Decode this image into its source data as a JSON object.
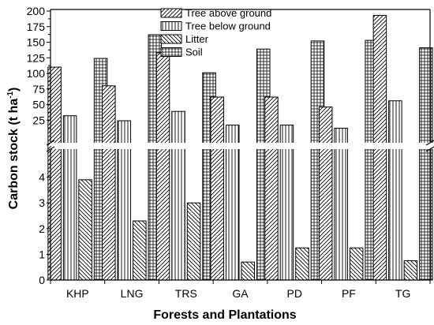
{
  "chart_data": {
    "type": "bar",
    "categories": [
      "KHP",
      "LNG",
      "TRS",
      "GA",
      "PD",
      "PF",
      "TG"
    ],
    "series": [
      {
        "name": "Tree above ground",
        "pattern": "diag-right",
        "values": [
          110,
          80,
          133,
          62,
          62,
          46,
          193
        ]
      },
      {
        "name": "Tree below ground",
        "pattern": "vertical",
        "values": [
          32,
          24,
          39,
          17,
          17,
          12,
          56
        ]
      },
      {
        "name": "Litter",
        "pattern": "diag-left",
        "values": [
          3.9,
          2.3,
          3.0,
          0.7,
          1.25,
          1.25,
          0.75
        ]
      },
      {
        "name": "Soil",
        "pattern": "grid",
        "values": [
          124,
          162,
          101,
          139,
          152,
          153,
          141
        ]
      }
    ],
    "xlabel": "Forests and Plantations",
    "ylabel": "Carbon stock (t ha",
    "ylabel_sup": "-1",
    "ylabel_close": ")",
    "y_axis_broken": true,
    "lower_segment": {
      "ylim": [
        0,
        5
      ],
      "ticks": [
        "0",
        "1",
        "2",
        "3",
        "4"
      ]
    },
    "upper_segment": {
      "ylim": [
        5,
        200
      ],
      "ticks": [
        "25",
        "50",
        "75",
        "100",
        "125",
        "150",
        "175",
        "200"
      ]
    },
    "grid": false,
    "legend_position": "top-center",
    "colors": {
      "bar_stroke": "#000000",
      "hatch": "#000000",
      "background": "#ffffff"
    }
  }
}
